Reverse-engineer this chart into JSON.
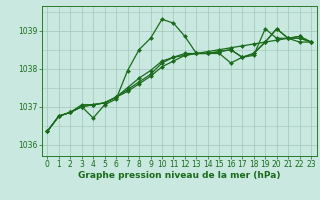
{
  "title": "Graphe pression niveau de la mer (hPa)",
  "bg_color": "#c8e8e0",
  "grid_color": "#a0c8b8",
  "line_color": "#1a6b1a",
  "marker": "D",
  "markersize": 2.0,
  "linewidth": 0.9,
  "xlim": [
    -0.5,
    23.5
  ],
  "ylim": [
    1035.7,
    1039.65
  ],
  "yticks": [
    1036,
    1037,
    1038,
    1039
  ],
  "xticks": [
    0,
    1,
    2,
    3,
    4,
    5,
    6,
    7,
    8,
    9,
    10,
    11,
    12,
    13,
    14,
    15,
    16,
    17,
    18,
    19,
    20,
    21,
    22,
    23
  ],
  "series": [
    [
      1036.35,
      1036.75,
      1036.85,
      1037.0,
      1036.7,
      1037.05,
      1037.2,
      1037.95,
      1038.5,
      1038.8,
      1039.3,
      1039.2,
      1038.85,
      1038.4,
      1038.4,
      1038.4,
      1038.15,
      1038.3,
      1038.35,
      1039.05,
      1038.8,
      1038.8,
      1038.7,
      1038.7
    ],
    [
      1036.35,
      1036.75,
      1036.85,
      1037.0,
      1037.05,
      1037.1,
      1037.25,
      1037.4,
      1037.6,
      1037.8,
      1038.05,
      1038.2,
      1038.35,
      1038.4,
      1038.45,
      1038.5,
      1038.55,
      1038.6,
      1038.65,
      1038.7,
      1038.75,
      1038.8,
      1038.8,
      1038.7
    ],
    [
      1036.35,
      1036.75,
      1036.85,
      1037.0,
      1037.05,
      1037.1,
      1037.25,
      1037.45,
      1037.65,
      1037.85,
      1038.15,
      1038.3,
      1038.4,
      1038.4,
      1038.4,
      1038.45,
      1038.5,
      1038.3,
      1038.4,
      1038.7,
      1039.05,
      1038.8,
      1038.85,
      1038.7
    ],
    [
      1036.35,
      1036.75,
      1036.85,
      1037.05,
      1037.05,
      1037.1,
      1037.25,
      1037.5,
      1037.75,
      1037.95,
      1038.2,
      1038.3,
      1038.35,
      1038.4,
      1038.4,
      1038.45,
      1038.5,
      1038.3,
      1038.4,
      1038.7,
      1039.05,
      1038.8,
      1038.85,
      1038.7
    ]
  ],
  "tick_fontsize": 5.5,
  "xlabel_fontsize": 6.5,
  "fig_width": 3.2,
  "fig_height": 2.0,
  "dpi": 100
}
